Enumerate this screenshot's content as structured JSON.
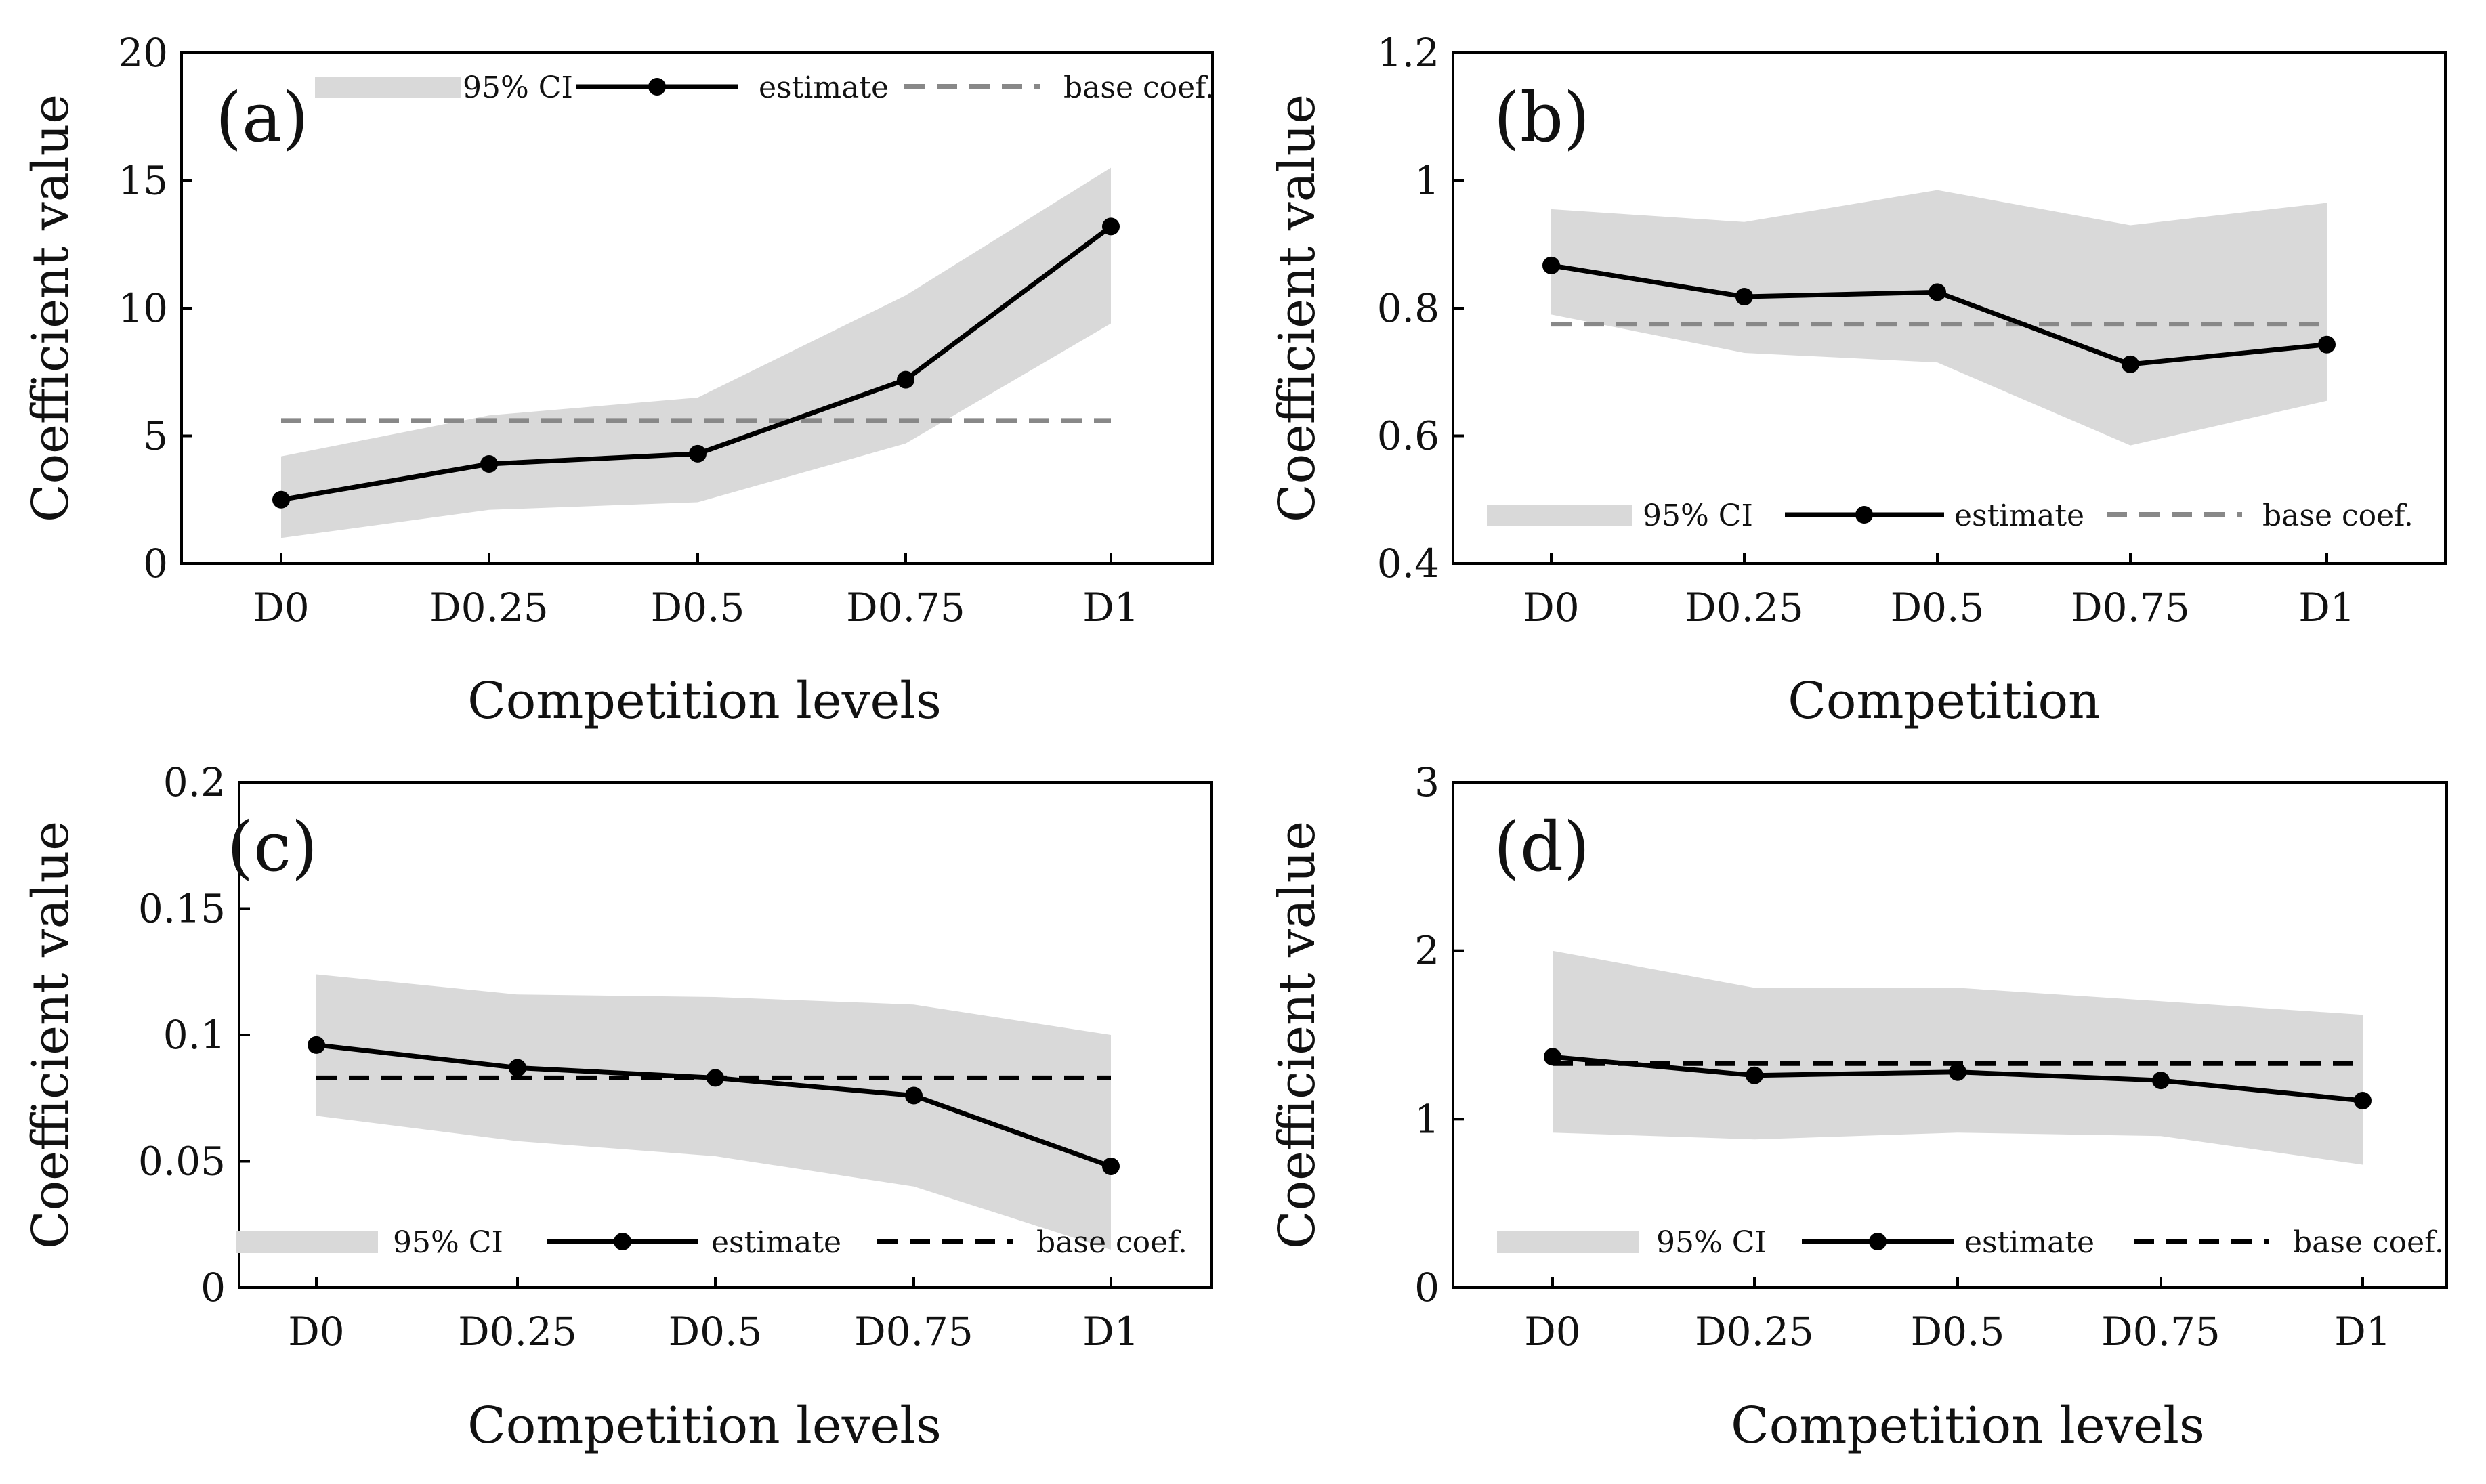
{
  "chart_data": [
    {
      "type": "line",
      "panel_label": "(a)",
      "categories": [
        "D0",
        "D0.25",
        "D0.5",
        "D0.75",
        "D1"
      ],
      "ylim": [
        0,
        20
      ],
      "yticks": [
        0,
        5,
        10,
        15,
        20
      ],
      "ytick_labels": [
        "0",
        "5",
        "10",
        "15",
        "20"
      ],
      "xlabel": "Competition levels",
      "ylabel": "Coefficient value",
      "legend_position": "top",
      "series": [
        {
          "name": "estimate",
          "values": [
            2.5,
            3.9,
            4.3,
            7.2,
            13.2
          ],
          "color": "#000000"
        },
        {
          "name": "95% CI",
          "lower": [
            1.0,
            2.1,
            2.4,
            4.7,
            9.4
          ],
          "upper": [
            4.2,
            5.8,
            6.5,
            10.5,
            15.5
          ],
          "color": "#d9d9d9"
        },
        {
          "name": "base coef.",
          "constant": 5.6,
          "color": "#888888"
        }
      ],
      "legend": {
        "ci": "95% CI",
        "estimate": "estimate",
        "base": "base coef."
      }
    },
    {
      "type": "line",
      "panel_label": "(b)",
      "categories": [
        "D0",
        "D0.25",
        "D0.5",
        "D0.75",
        "D1"
      ],
      "ylim": [
        0.4,
        1.2
      ],
      "yticks": [
        0.4,
        0.6,
        0.8,
        1.0,
        1.2
      ],
      "ytick_labels": [
        "0.4",
        "0.6",
        "0.8",
        "1",
        "1.2"
      ],
      "xlabel": "Competition",
      "ylabel": "Coefficient value",
      "legend_position": "bottom",
      "series": [
        {
          "name": "estimate",
          "values": [
            0.867,
            0.818,
            0.825,
            0.712,
            0.743
          ],
          "color": "#000000"
        },
        {
          "name": "95% CI",
          "lower": [
            0.79,
            0.73,
            0.715,
            0.585,
            0.655
          ],
          "upper": [
            0.955,
            0.935,
            0.985,
            0.93,
            0.965
          ],
          "color": "#d9d9d9"
        },
        {
          "name": "base coef.",
          "constant": 0.775,
          "color": "#888888"
        }
      ],
      "legend": {
        "ci": "95% CI",
        "estimate": "estimate",
        "base": "base coef."
      }
    },
    {
      "type": "line",
      "panel_label": "(c)",
      "categories": [
        "D0",
        "D0.25",
        "D0.5",
        "D0.75",
        "D1"
      ],
      "ylim": [
        0,
        0.2
      ],
      "yticks": [
        0,
        0.05,
        0.1,
        0.15,
        0.2
      ],
      "ytick_labels": [
        "0",
        "0.05",
        "0.1",
        "0.15",
        "0.2"
      ],
      "xlabel": "Competition levels",
      "ylabel": "Coefficient value",
      "legend_position": "bottom",
      "series": [
        {
          "name": "estimate",
          "values": [
            0.096,
            0.087,
            0.083,
            0.076,
            0.048
          ],
          "color": "#000000"
        },
        {
          "name": "95% CI",
          "lower": [
            0.068,
            0.058,
            0.052,
            0.04,
            0.015
          ],
          "upper": [
            0.124,
            0.116,
            0.115,
            0.112,
            0.1
          ],
          "color": "#d9d9d9"
        },
        {
          "name": "base coef.",
          "constant": 0.083,
          "color": "#000000"
        }
      ],
      "legend": {
        "ci": "95% CI",
        "estimate": "estimate",
        "base": "base coef."
      }
    },
    {
      "type": "line",
      "panel_label": "(d)",
      "categories": [
        "D0",
        "D0.25",
        "D0.5",
        "D0.75",
        "D1"
      ],
      "ylim": [
        0,
        3
      ],
      "yticks": [
        0,
        1,
        2,
        3
      ],
      "ytick_labels": [
        "0",
        "1",
        "2",
        "3"
      ],
      "xlabel": "Competition levels",
      "ylabel": "Coefficient value",
      "legend_position": "bottom",
      "series": [
        {
          "name": "estimate",
          "values": [
            1.37,
            1.26,
            1.28,
            1.23,
            1.11
          ],
          "color": "#000000"
        },
        {
          "name": "95% CI",
          "lower": [
            0.92,
            0.88,
            0.92,
            0.9,
            0.73
          ],
          "upper": [
            2.0,
            1.78,
            1.78,
            1.7,
            1.62
          ],
          "color": "#d9d9d9"
        },
        {
          "name": "base coef.",
          "constant": 1.33,
          "color": "#000000"
        }
      ],
      "legend": {
        "ci": "95% CI",
        "estimate": "estimate",
        "base": "base coef."
      }
    }
  ]
}
